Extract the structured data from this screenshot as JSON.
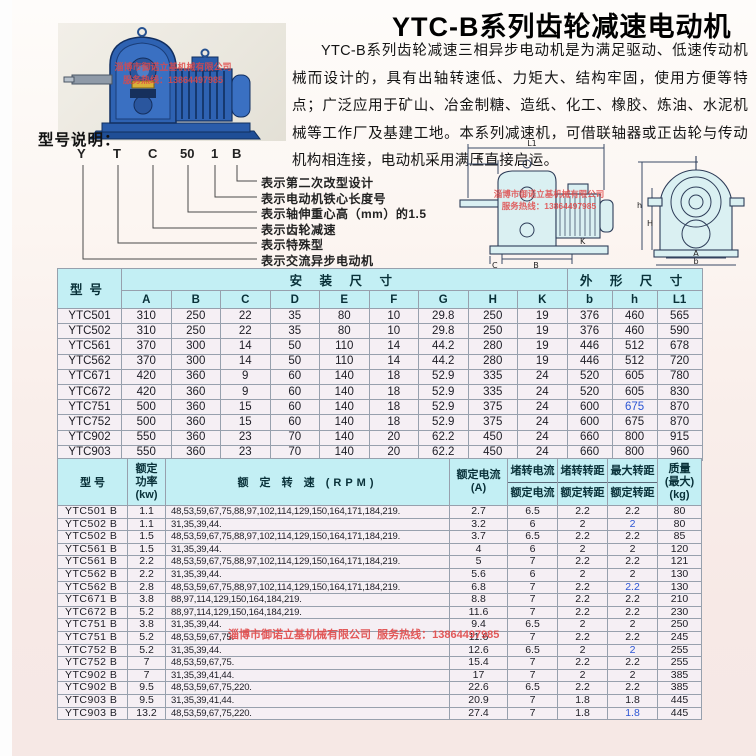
{
  "page": {
    "title": "YTC-B系列齿轮减速电动机",
    "intro": "YTC-B系列齿轮减速三相异步电动机是为满足驱动、低速传动机械而设计的，具有出轴转速低、力矩大、结构牢固，使用方便等特点；广泛应用于矿山、冶金制糖、造纸、化工、橡胶、炼油、水泥机械等工作厂及基建工地。本系列减速机，可借联轴器或正齿轮与传动机构相连接，电动机采用满压直接启运。"
  },
  "watermark": {
    "company": "淄博市御诺立基机械有限公司",
    "hotline": "服务热线：13864497985"
  },
  "model_legend": {
    "heading": "型号说明：",
    "code_parts": [
      "Y",
      "T",
      "C",
      "50",
      "1",
      "B"
    ],
    "explanations": [
      "表示第二次改型设计",
      "表示电动机铁心长度号",
      "表示轴伸重心高（mm）的1.5",
      "表示齿轮减速",
      "表示特殊型",
      "表示交流异步电动机"
    ]
  },
  "drawing_labels": {
    "side": [
      "L1",
      "E",
      "C",
      "B",
      "K"
    ],
    "front": [
      "h",
      "H",
      "A",
      "b"
    ]
  },
  "dim_table": {
    "model_header": "型号",
    "install_header": "安 装 尺 寸",
    "outline_header": "外 形 尺 寸",
    "sub_headers": [
      "A",
      "B",
      "C",
      "D",
      "E",
      "F",
      "G",
      "H",
      "K",
      "b",
      "h",
      "L1"
    ],
    "blue_cells": [
      [
        6,
        11
      ]
    ],
    "rows": [
      [
        "YTC501",
        "310",
        "250",
        "22",
        "35",
        "80",
        "10",
        "29.8",
        "250",
        "19",
        "376",
        "460",
        "565"
      ],
      [
        "YTC502",
        "310",
        "250",
        "22",
        "35",
        "80",
        "10",
        "29.8",
        "250",
        "19",
        "376",
        "460",
        "590"
      ],
      [
        "YTC561",
        "370",
        "300",
        "14",
        "50",
        "110",
        "14",
        "44.2",
        "280",
        "19",
        "446",
        "512",
        "678"
      ],
      [
        "YTC562",
        "370",
        "300",
        "14",
        "50",
        "110",
        "14",
        "44.2",
        "280",
        "19",
        "446",
        "512",
        "720"
      ],
      [
        "YTC671",
        "420",
        "360",
        "9",
        "60",
        "140",
        "18",
        "52.9",
        "335",
        "24",
        "520",
        "605",
        "780"
      ],
      [
        "YTC672",
        "420",
        "360",
        "9",
        "60",
        "140",
        "18",
        "52.9",
        "335",
        "24",
        "520",
        "605",
        "830"
      ],
      [
        "YTC751",
        "500",
        "360",
        "15",
        "60",
        "140",
        "18",
        "52.9",
        "375",
        "24",
        "600",
        "675",
        "870"
      ],
      [
        "YTC752",
        "500",
        "360",
        "15",
        "60",
        "140",
        "18",
        "52.9",
        "375",
        "24",
        "600",
        "675",
        "870"
      ],
      [
        "YTC902",
        "550",
        "360",
        "23",
        "70",
        "140",
        "20",
        "62.2",
        "450",
        "24",
        "660",
        "800",
        "915"
      ],
      [
        "YTC903",
        "550",
        "360",
        "23",
        "70",
        "140",
        "20",
        "62.2",
        "450",
        "24",
        "660",
        "800",
        "960"
      ]
    ]
  },
  "spec_table": {
    "headers": {
      "model": "型 号",
      "power_lines": [
        "额定",
        "功率",
        "(kw)"
      ],
      "speed": "额 定 转 速 (RPM)",
      "current_lines": [
        "额定电流",
        "(A)"
      ],
      "ratio_cols": [
        {
          "top": "堵转电流",
          "bottom": "额定电流"
        },
        {
          "top": "堵转转距",
          "bottom": "额定转距"
        },
        {
          "top": "最大转距",
          "bottom": "额定转距"
        }
      ],
      "mass_lines": [
        "质量",
        "(最大)",
        "(kg)"
      ]
    },
    "blue_cells": [
      [
        1,
        6
      ],
      [
        6,
        6
      ],
      [
        11,
        6
      ],
      [
        16,
        6
      ]
    ],
    "rows": [
      [
        "YTC501 B",
        "1.1",
        "48,53,59,67,75,88,97,102,114,129,150,164,171,184,219.",
        "2.7",
        "6.5",
        "2.2",
        "2.2",
        "80"
      ],
      [
        "YTC502 B",
        "1.1",
        "31,35,39,44.",
        "3.2",
        "6",
        "2",
        "2",
        "80"
      ],
      [
        "YTC502 B",
        "1.5",
        "48,53,59,67,75,88,97,102,114,129,150,164,171,184,219.",
        "3.7",
        "6.5",
        "2.2",
        "2.2",
        "85"
      ],
      [
        "YTC561 B",
        "1.5",
        "31,35,39,44.",
        "4",
        "6",
        "2",
        "2",
        "120"
      ],
      [
        "YTC561 B",
        "2.2",
        "48,53,59,67,75,88,97,102,114,129,150,164,171,184,219.",
        "5",
        "7",
        "2.2",
        "2.2",
        "121"
      ],
      [
        "YTC562 B",
        "2.2",
        "31,35,39,44.",
        "5.6",
        "6",
        "2",
        "2",
        "130"
      ],
      [
        "YTC562 B",
        "2.8",
        "48,53,59,67,75,88,97,102,114,129,150,164,171,184,219.",
        "6.8",
        "7",
        "2.2",
        "2.2",
        "130"
      ],
      [
        "YTC671 B",
        "3.8",
        "88,97,114,129,150,164,184,219.",
        "8.8",
        "7",
        "2.2",
        "2.2",
        "210"
      ],
      [
        "YTC672 B",
        "5.2",
        "88,97,114,129,150,164,184,219.",
        "11.6",
        "7",
        "2.2",
        "2.2",
        "230"
      ],
      [
        "YTC751 B",
        "3.8",
        "31,35,39,44.",
        "9.4",
        "6.5",
        "2",
        "2",
        "250"
      ],
      [
        "YTC751 B",
        "5.2",
        "48,53,59,67,75.",
        "11.6",
        "7",
        "2.2",
        "2.2",
        "245"
      ],
      [
        "YTC752 B",
        "5.2",
        "31,35,39,44.",
        "12.6",
        "6.5",
        "2",
        "2",
        "255"
      ],
      [
        "YTC752 B",
        "7",
        "48,53,59,67,75.",
        "15.4",
        "7",
        "2.2",
        "2.2",
        "255"
      ],
      [
        "YTC902 B",
        "7",
        "31,35,39,41,44.",
        "17",
        "7",
        "2",
        "2",
        "385"
      ],
      [
        "YTC902 B",
        "9.5",
        "48,53,59,67,75,220.",
        "22.6",
        "6.5",
        "2.2",
        "2.2",
        "385"
      ],
      [
        "YTC903 B",
        "9.5",
        "31,35,39,41,44.",
        "20.9",
        "7",
        "1.8",
        "1.8",
        "445"
      ],
      [
        "YTC903 B",
        "13.2",
        "48,53,59,67,75,220.",
        "27.4",
        "7",
        "1.8",
        "1.8",
        "445"
      ]
    ]
  }
}
